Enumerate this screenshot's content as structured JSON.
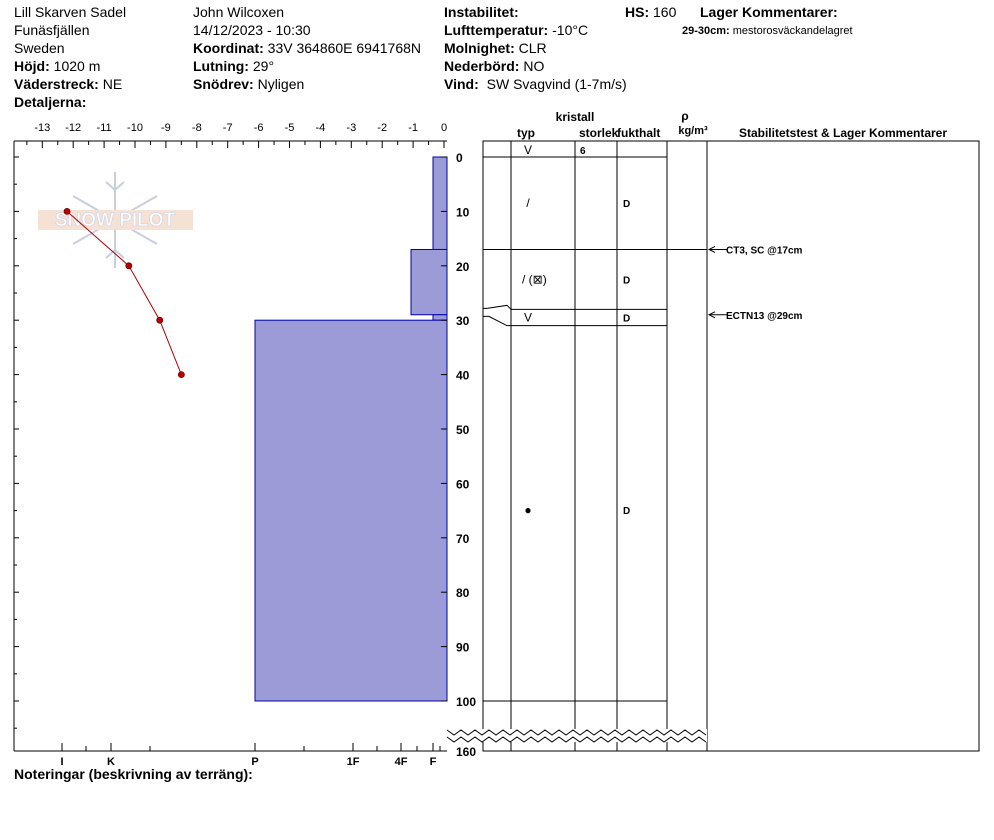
{
  "header": {
    "col1": {
      "location": "Lill Skarven Sadel",
      "area": "Funäsfjällen",
      "country": "Sweden",
      "elevation_label": "Höjd:",
      "elevation": "1020 m",
      "aspect_label": "Väderstreck:",
      "aspect": "NE",
      "details_label": "Detaljerna:"
    },
    "col2": {
      "observer": "John Wilcoxen",
      "datetime": "14/12/2023 - 10:30",
      "coord_label": "Koordinat:",
      "coord": "33V 364860E 6941768N",
      "slope_label": "Lutning:",
      "slope": "29°",
      "drift_label": "Snödrev:",
      "drift": "Nyligen"
    },
    "col3": {
      "instability_label": "Instabilitet:",
      "airtemp_label": "Lufttemperatur:",
      "airtemp": "-10°C",
      "sky_label": "Molnighet:",
      "sky": "CLR",
      "precip_label": "Nederbörd:",
      "precip": "NO",
      "wind_label": "Vind:",
      "wind": "SW Svagvind (1-7m/s)",
      "hs_label": "HS:",
      "hs": "160"
    },
    "col4": {
      "layer_comments_label": "Lager Kommentarer:",
      "comment_range": "29-30cm:",
      "comment_text": "mestorosväckandelagret"
    }
  },
  "chart_data": {
    "type": "snow-profile",
    "temp_axis": {
      "ticks": [
        "-13",
        "-12",
        "-11",
        "-10",
        "-9",
        "-8",
        "-7",
        "-6",
        "-5",
        "-4",
        "-3",
        "-2",
        "-1",
        "0"
      ],
      "range": [
        -13.6,
        0
      ]
    },
    "depth_axis": {
      "ticks": [
        "0",
        "10",
        "20",
        "30",
        "40",
        "50",
        "60",
        "70",
        "80",
        "90",
        "100",
        "160"
      ],
      "break_after": 100
    },
    "hardness_axis": {
      "labels": [
        "I",
        "K",
        "P",
        "1F",
        "4F",
        "F"
      ]
    },
    "temperature_profile": [
      {
        "depth": 10,
        "temp": -12.2
      },
      {
        "depth": 20,
        "temp": -10.2
      },
      {
        "depth": 30,
        "temp": -9.2
      },
      {
        "depth": 40,
        "temp": -8.5
      }
    ],
    "hardness_layers": [
      {
        "top": 0,
        "bottom": 17,
        "hardness": "F"
      },
      {
        "top": 17,
        "bottom": 29,
        "hardness": "F+"
      },
      {
        "top": 29,
        "bottom": 30,
        "hardness": "F"
      },
      {
        "top": 30,
        "bottom": 100,
        "hardness": "P"
      }
    ],
    "table_headers": {
      "crystal": "kristall",
      "type": "typ",
      "size": "storlek",
      "moisture": "fukthalt",
      "density_symbol": "ρ",
      "density_unit": "kg/m³",
      "stability": "Stabilitetstest & Lager Kommentarer"
    },
    "surface_row": {
      "symbol": "V",
      "size": "6"
    },
    "layers": [
      {
        "top": 0,
        "bottom": 17,
        "symbol": "/",
        "moisture": "D"
      },
      {
        "top": 17,
        "bottom": 28,
        "symbol": "/ (⊠)",
        "moisture": "D"
      },
      {
        "top": 28,
        "bottom": 31,
        "symbol": "V",
        "moisture": "D"
      },
      {
        "top": 31,
        "bottom": 100,
        "symbol": "●",
        "moisture": "D"
      }
    ],
    "stability_tests": [
      {
        "depth": 17,
        "label": "CT3, SC @17cm"
      },
      {
        "depth": 29,
        "label": "ECTN13 @29cm"
      }
    ]
  },
  "watermark": "SNOW PILOT",
  "footer": {
    "notes_label": "Noteringar (beskrivning av terräng):"
  }
}
